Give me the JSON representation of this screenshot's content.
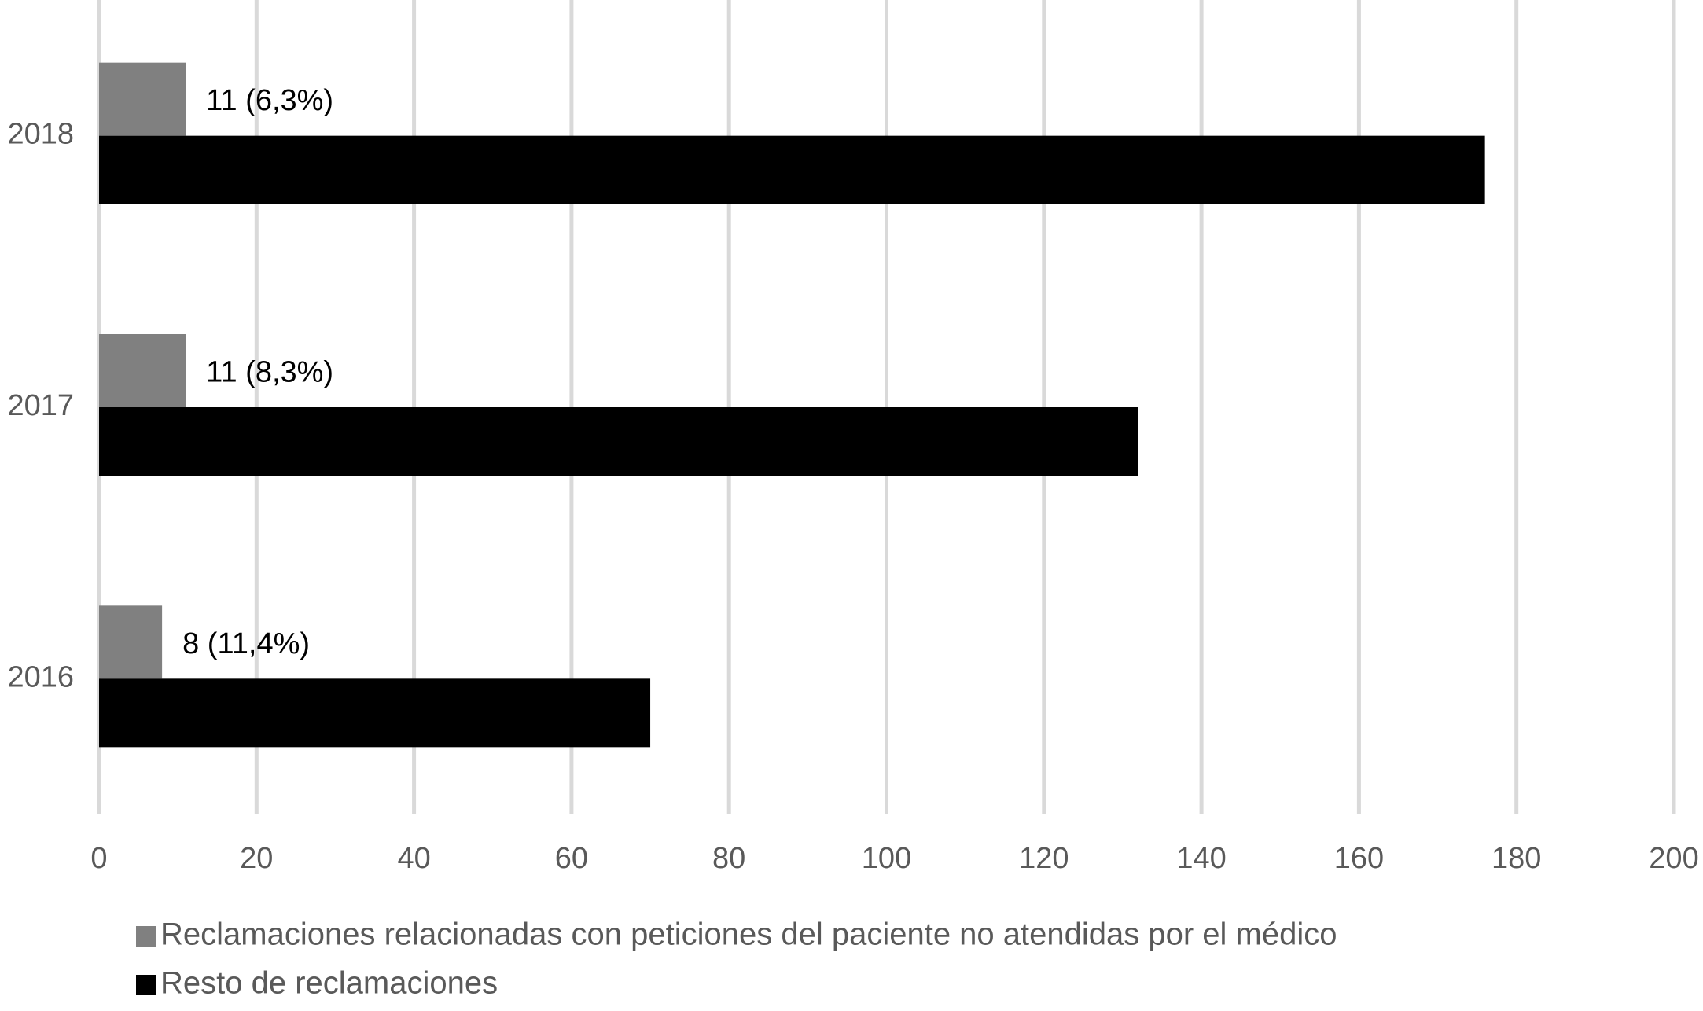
{
  "chart_data": {
    "type": "bar",
    "orientation": "horizontal",
    "categories": [
      "2016",
      "2017",
      "2018"
    ],
    "series": [
      {
        "name": "Reclamaciones relacionadas con peticiones del paciente no atendidas por el médico",
        "color": "#808080",
        "values": [
          8,
          11,
          11
        ],
        "value_labels": [
          "8 (11,4%)",
          "11 (8,3%)",
          "11 (6,3%)"
        ]
      },
      {
        "name": "Resto de reclamaciones",
        "color": "#000000",
        "values": [
          70,
          132,
          176
        ]
      }
    ],
    "xlim": [
      0,
      200
    ],
    "xticks": [
      0,
      20,
      40,
      60,
      80,
      100,
      120,
      140,
      160,
      180,
      200
    ],
    "grid": true,
    "legend": "bottom"
  }
}
